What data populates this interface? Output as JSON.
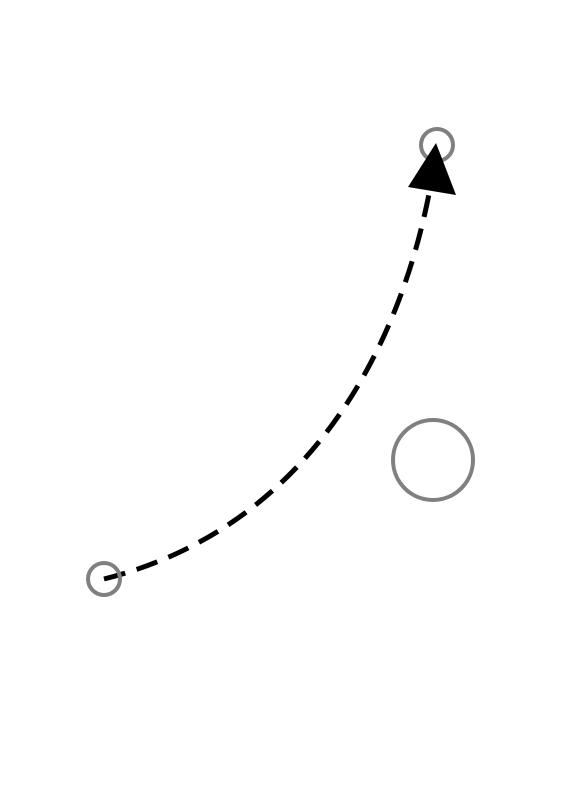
{
  "diagram": {
    "background_color": "#ffffff",
    "elements": {
      "start_marker": {
        "shape": "small-circle",
        "stroke_color": "#808080"
      },
      "end_marker": {
        "shape": "small-circle",
        "stroke_color": "#808080"
      },
      "large_circle": {
        "shape": "circle",
        "stroke_color": "#808080"
      },
      "path": {
        "style": "dashed-curve",
        "stroke_color": "#000000"
      },
      "arrowhead": {
        "icon": "arrowhead-icon",
        "fill_color": "#000000"
      }
    }
  }
}
